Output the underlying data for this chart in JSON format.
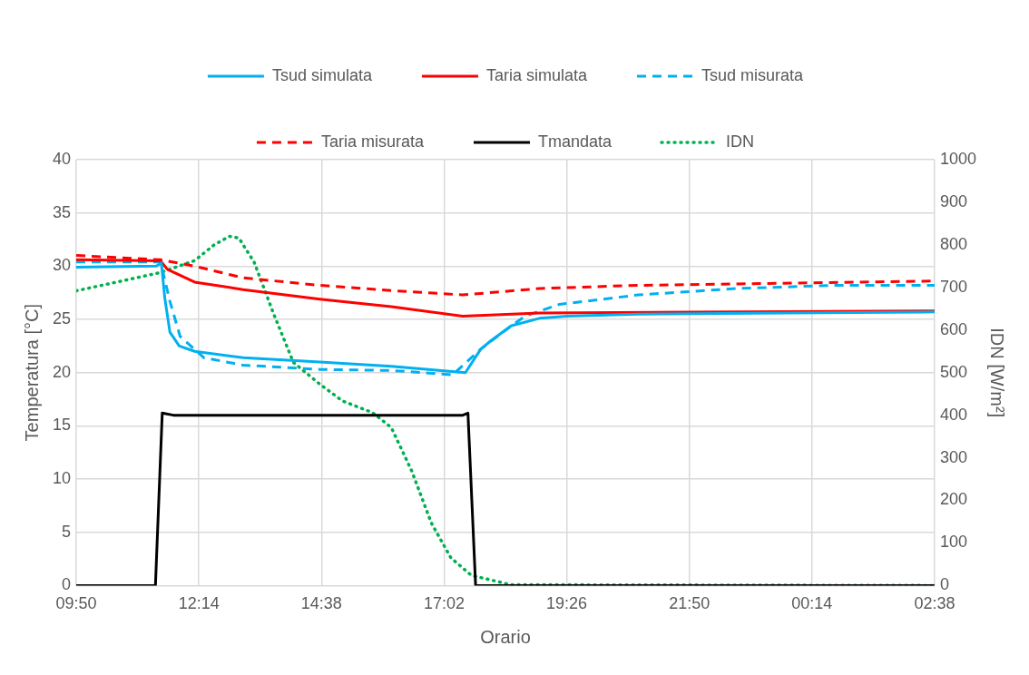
{
  "chart_data": {
    "type": "line",
    "xlabel": "Orario",
    "ylabel": "Temperatura [°C]",
    "y2label": "IDN [W/m²]",
    "xlim": [
      "--01-01T09:50",
      "--01-02T02:38"
    ],
    "xticks": [
      {
        "value": "--01-01T09:50",
        "label": "09:50"
      },
      {
        "value": "--01-01T12:14",
        "label": "12:14"
      },
      {
        "value": "--01-01T14:38",
        "label": "14:38"
      },
      {
        "value": "--01-01T17:02",
        "label": "17:02"
      },
      {
        "value": "--01-01T19:26",
        "label": "19:26"
      },
      {
        "value": "--01-01T21:50",
        "label": "21:50"
      },
      {
        "value": "--01-02T00:14",
        "label": "00:14"
      },
      {
        "value": "--01-02T02:38",
        "label": "02:38"
      }
    ],
    "ylim": [
      0,
      40
    ],
    "yticks": [
      0,
      5,
      10,
      15,
      20,
      25,
      30,
      35,
      40
    ],
    "y2lim": [
      0,
      1000
    ],
    "y2ticks": [
      0,
      100,
      200,
      300,
      400,
      500,
      600,
      700,
      800,
      900,
      1000
    ],
    "grid": true,
    "legend": "top",
    "marker": "none",
    "series": [
      {
        "name": "Tsud simulata",
        "color": "#00b0f0",
        "line_style": "solid",
        "x": [
          "--01-01T09:50",
          "--01-01T11:24",
          "--01-01T11:30",
          "--01-01T11:34",
          "--01-01T11:40",
          "--01-01T11:51",
          "--01-01T12:09",
          "--01-01T13:06",
          "--01-01T14:36",
          "--01-01T16:00",
          "--01-01T17:27",
          "--01-01T17:45",
          "--01-01T17:57",
          "--01-01T18:21",
          "--01-01T18:54",
          "--01-01T19:26",
          "--01-01T20:50",
          "--01-01T23:42",
          "--01-02T02:38"
        ],
        "values": [
          29.9,
          30.0,
          30.3,
          27.0,
          23.8,
          22.5,
          22.0,
          21.4,
          21.0,
          20.6,
          20.0,
          22.2,
          23.0,
          24.4,
          25.1,
          25.3,
          25.5,
          25.6,
          25.7
        ]
      },
      {
        "name": "Taria simulata",
        "color": "#ff0000",
        "line_style": "solid",
        "x": [
          "--01-01T09:50",
          "--01-01T11:29",
          "--01-01T11:37",
          "--01-01T12:09",
          "--01-01T13:06",
          "--01-01T14:36",
          "--01-01T16:00",
          "--01-01T17:24",
          "--01-01T18:54",
          "--01-02T02:38"
        ],
        "values": [
          30.6,
          30.5,
          29.7,
          28.5,
          27.8,
          26.9,
          26.2,
          25.3,
          25.6,
          25.8
        ]
      },
      {
        "name": "Tsud misurata",
        "color": "#00b0f0",
        "line_style": "dashed",
        "x": [
          "--01-01T09:50",
          "--01-01T11:29",
          "--01-01T11:40",
          "--01-01T11:52",
          "--01-01T12:20",
          "--01-01T13:06",
          "--01-01T14:36",
          "--01-01T16:00",
          "--01-01T17:12",
          "--01-01T17:45",
          "--01-01T18:21",
          "--01-01T18:37",
          "--01-01T19:17",
          "--01-01T20:50",
          "--01-01T22:46",
          "--01-02T00:42",
          "--01-02T02:38"
        ],
        "values": [
          30.4,
          30.4,
          26.7,
          23.4,
          21.4,
          20.7,
          20.3,
          20.2,
          19.8,
          22.2,
          24.4,
          25.3,
          26.4,
          27.3,
          27.9,
          28.2,
          28.2
        ]
      },
      {
        "name": "Taria misurata",
        "color": "#ff0000",
        "line_style": "dashed",
        "x": [
          "--01-01T09:50",
          "--01-01T11:29",
          "--01-01T12:09",
          "--01-01T13:06",
          "--01-01T14:36",
          "--01-01T16:00",
          "--01-01T17:24",
          "--01-01T18:54",
          "--01-01T20:50",
          "--01-02T02:38"
        ],
        "values": [
          31.0,
          30.6,
          30.0,
          28.9,
          28.2,
          27.7,
          27.3,
          27.9,
          28.2,
          28.6
        ]
      },
      {
        "name": "Tmandata",
        "color": "#000000",
        "line_style": "solid",
        "x": [
          "--01-01T09:50",
          "--01-01T11:23",
          "--01-01T11:31",
          "--01-01T11:44",
          "--01-01T17:24",
          "--01-01T17:30",
          "--01-01T17:39",
          "--01-02T02:38"
        ],
        "values": [
          0,
          0,
          16.2,
          16.0,
          16.0,
          16.2,
          0,
          0
        ]
      },
      {
        "name": "IDN",
        "color": "#00b050",
        "line_style": "dotted",
        "axis": "y2",
        "x": [
          "--01-01T09:50",
          "--01-01T11:29",
          "--01-01T12:09",
          "--01-01T12:32",
          "--01-01T12:50",
          "--01-01T13:01",
          "--01-01T13:19",
          "--01-01T13:42",
          "--01-01T14:05",
          "--01-01T14:36",
          "--01-01T15:03",
          "--01-01T15:38",
          "--01-01T16:00",
          "--01-01T16:24",
          "--01-01T16:47",
          "--01-01T17:10",
          "--01-01T17:34",
          "--01-01T18:20",
          "--01-02T02:38"
        ],
        "values": [
          692,
          735,
          763,
          800,
          820,
          816,
          759,
          637,
          524,
          473,
          433,
          406,
          371,
          269,
          147,
          65,
          24,
          2,
          0
        ]
      }
    ]
  }
}
